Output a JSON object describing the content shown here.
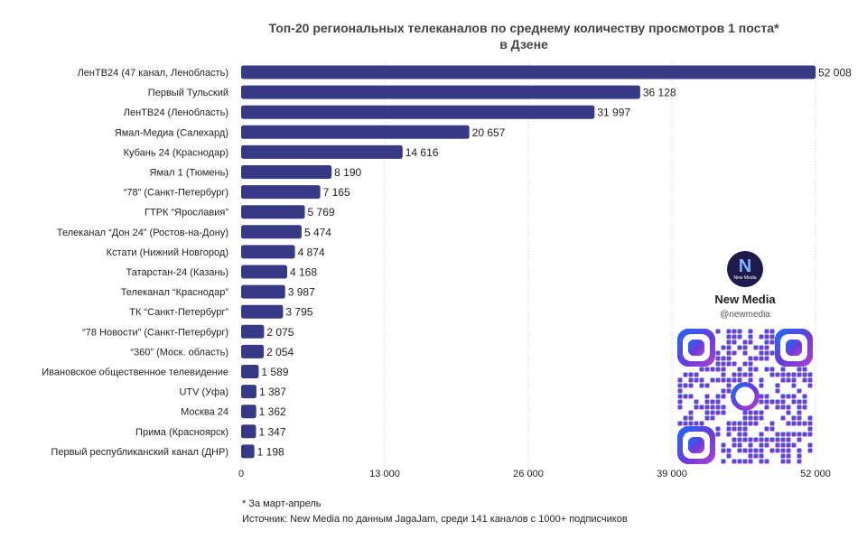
{
  "chart_data": {
    "type": "bar",
    "orientation": "horizontal",
    "title_lines": [
      "Топ-20 региональных телеканалов по среднему количеству просмотров 1 поста*",
      "в Дзене"
    ],
    "categories": [
      "ЛенТВ24 (47 канал, Ленобласть)",
      "Первый Тульский",
      "ЛенТВ24 (Ленобласть)",
      "Ямал-Медиа (Салехард)",
      "Кубань 24 (Краснодар)",
      "Ямал 1 (Тюмень)",
      "“78” (Санкт-Петербург)",
      "ГТРК “Ярославия”",
      "Телеканал “Дон 24” (Ростов-на-Дону)",
      "Кстати (Нижний Новгород)",
      "Татарстан-24 (Казань)",
      "Телеканал “Краснодар”",
      "ТК “Санкт-Петербург”",
      "“78 Новости” (Санкт-Петербург)",
      "“360” (Моск. область)",
      "Ивановское общественное телевидение",
      "UTV (Уфа)",
      "Москва 24",
      "Прима (Красноярск)",
      "Первый республиканский канал (ДНР)"
    ],
    "values": [
      52008,
      36128,
      31997,
      20657,
      14616,
      8190,
      7165,
      5769,
      5474,
      4874,
      4168,
      3987,
      3795,
      2075,
      2054,
      1589,
      1387,
      1362,
      1347,
      1198
    ],
    "value_labels": [
      "52 008",
      "36 128",
      "31 997",
      "20 657",
      "14 616",
      "8 190",
      "7 165",
      "5 769",
      "5 474",
      "4 874",
      "4 168",
      "3 987",
      "3 795",
      "2 075",
      "2 054",
      "1 589",
      "1 387",
      "1 362",
      "1 347",
      "1 198"
    ],
    "xlim": [
      0,
      52000
    ],
    "xticks": [
      0,
      13000,
      26000,
      39000,
      52000
    ],
    "xtick_labels": [
      "0",
      "13 000",
      "26 000",
      "39 000",
      "52 000"
    ],
    "grid": true,
    "bar_color": "#363a86"
  },
  "footnotes": {
    "note": "* За март-апрель",
    "source": "Источник: New Media по данным JagaJam, среди 141 каналов с 1000+ подписчиков"
  },
  "promo": {
    "logo_letter": "N",
    "logo_small_text": "New Media",
    "name": "New Media",
    "handle": "@newmedia",
    "logo_color": "#1e1a4a",
    "qr_gradient": [
      "#1a6cff",
      "#6a3bd8",
      "#b43fd6"
    ]
  }
}
